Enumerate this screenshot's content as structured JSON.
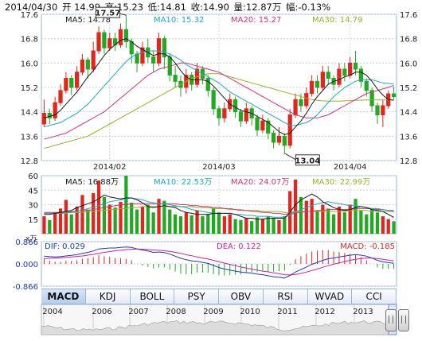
{
  "header": {
    "date": "2014/04/30",
    "open": "开 14.99",
    "high": "高:15.23",
    "low": "低:14.81",
    "close": "收:14.90",
    "volume": "量:12.87万",
    "change": "幅:-0.13%"
  },
  "price_panel": {
    "ma_labels": [
      {
        "text": "MA5: 14.78",
        "color": "#1a1a1a"
      },
      {
        "text": "MA10: 15.32",
        "color": "#1ca7c9"
      },
      {
        "text": "MA20: 15.27",
        "color": "#d4327a"
      },
      {
        "text": "MA30: 14.79",
        "color": "#9bb021"
      }
    ],
    "y_ticks": [
      "17.6",
      "16.8",
      "16.0",
      "15.2",
      "14.4",
      "13.6",
      "12.8"
    ],
    "x_ticks": [
      "2014/02",
      "2014/03",
      "2014/04"
    ],
    "annotations": {
      "max": "17.57",
      "min": "13.04"
    }
  },
  "volume_panel": {
    "unit": "x万",
    "ma_labels": [
      {
        "text": "MA5: 16.88万",
        "color": "#1a1a1a"
      },
      {
        "text": "MA10: 22.53万",
        "color": "#1ca7c9"
      },
      {
        "text": "MA20: 24.07万",
        "color": "#d4327a"
      },
      {
        "text": "MA30: 22.99万",
        "color": "#9bb021"
      }
    ],
    "y_ticks": [
      "60",
      "45",
      "30",
      "15"
    ]
  },
  "macd_panel": {
    "dif": "DIF: 0.029",
    "dea": "DEA: 0.122",
    "macd": "MACD: -0.185",
    "y_ticks": [
      "0.866",
      "0.000",
      "-0.866"
    ]
  },
  "tabs": [
    "MACD",
    "KDJ",
    "BOLL",
    "PSY",
    "OBV",
    "RSI",
    "WVAD",
    "CCI"
  ],
  "active_tab": "MACD",
  "timeline": [
    "2004",
    "2006",
    "2007",
    "2008",
    "2009",
    "2010",
    "2011",
    "2012",
    "2013"
  ],
  "colors": {
    "up": "#e0261d",
    "down": "#23a823",
    "grid": "#c9d4e6",
    "dif": "#1a3bb8",
    "dea": "#d41e9c"
  },
  "chart_data": {
    "type": "candlestick",
    "title": "",
    "ylim": [
      12.8,
      17.6
    ],
    "candles": [
      [
        14.0,
        14.35,
        14.8,
        13.9
      ],
      [
        14.35,
        14.2,
        14.5,
        14.0
      ],
      [
        14.2,
        14.7,
        14.9,
        14.1
      ],
      [
        14.7,
        15.1,
        15.3,
        14.6
      ],
      [
        15.1,
        15.5,
        15.7,
        15.0
      ],
      [
        15.5,
        15.2,
        15.6,
        14.95
      ],
      [
        15.2,
        15.7,
        15.9,
        15.1
      ],
      [
        15.7,
        16.1,
        16.3,
        15.6
      ],
      [
        16.1,
        15.8,
        16.2,
        15.5
      ],
      [
        15.8,
        16.4,
        16.7,
        15.7
      ],
      [
        16.4,
        17.0,
        17.2,
        16.3
      ],
      [
        17.0,
        16.5,
        17.1,
        16.3
      ],
      [
        16.5,
        16.8,
        17.0,
        16.4
      ],
      [
        16.8,
        16.6,
        17.0,
        16.4
      ],
      [
        16.6,
        17.1,
        17.3,
        16.5
      ],
      [
        17.1,
        16.7,
        17.57,
        16.5
      ],
      [
        16.7,
        16.3,
        16.8,
        16.0
      ],
      [
        16.3,
        16.0,
        16.4,
        15.7
      ],
      [
        16.0,
        16.5,
        16.7,
        15.9
      ],
      [
        16.5,
        16.2,
        16.8,
        16.0
      ],
      [
        16.2,
        16.0,
        16.4,
        15.7
      ],
      [
        16.0,
        16.8,
        17.0,
        15.9
      ],
      [
        16.8,
        16.2,
        16.9,
        15.8
      ],
      [
        16.2,
        15.6,
        16.3,
        15.4
      ],
      [
        15.6,
        15.4,
        15.9,
        15.2
      ],
      [
        15.4,
        15.2,
        15.6,
        14.9
      ],
      [
        15.2,
        15.6,
        15.8,
        15.0
      ],
      [
        15.6,
        15.3,
        15.7,
        15.1
      ],
      [
        15.3,
        15.8,
        16.0,
        15.2
      ],
      [
        15.8,
        15.5,
        15.9,
        15.3
      ],
      [
        15.5,
        15.1,
        15.6,
        14.9
      ],
      [
        15.1,
        14.5,
        15.2,
        14.3
      ],
      [
        14.5,
        14.2,
        14.6,
        13.95
      ],
      [
        14.2,
        14.5,
        14.7,
        14.05
      ],
      [
        14.5,
        14.8,
        15.0,
        14.4
      ],
      [
        14.8,
        14.4,
        14.9,
        14.2
      ],
      [
        14.4,
        14.1,
        14.5,
        13.9
      ],
      [
        14.1,
        14.5,
        14.7,
        14.0
      ],
      [
        14.5,
        14.2,
        14.6,
        13.95
      ],
      [
        14.2,
        13.8,
        14.3,
        13.6
      ],
      [
        13.8,
        14.1,
        14.3,
        13.7
      ],
      [
        14.1,
        13.7,
        14.2,
        13.5
      ],
      [
        13.7,
        13.4,
        13.8,
        13.2
      ],
      [
        13.4,
        13.6,
        13.9,
        13.3
      ],
      [
        13.6,
        13.3,
        13.7,
        13.04
      ],
      [
        13.3,
        14.3,
        14.5,
        13.2
      ],
      [
        14.3,
        14.8,
        15.0,
        14.2
      ],
      [
        14.8,
        14.6,
        15.0,
        14.4
      ],
      [
        14.6,
        15.0,
        15.2,
        14.5
      ],
      [
        15.0,
        15.4,
        15.6,
        14.9
      ],
      [
        15.4,
        15.2,
        15.6,
        15.0
      ],
      [
        15.2,
        15.7,
        15.9,
        15.1
      ],
      [
        15.7,
        15.5,
        15.9,
        15.3
      ],
      [
        15.5,
        15.3,
        15.6,
        15.1
      ],
      [
        15.3,
        15.8,
        16.0,
        15.2
      ],
      [
        15.8,
        15.6,
        16.0,
        15.4
      ],
      [
        15.6,
        16.0,
        16.2,
        15.5
      ],
      [
        16.0,
        15.8,
        16.4,
        15.6
      ],
      [
        15.8,
        15.4,
        15.9,
        15.2
      ],
      [
        15.4,
        15.1,
        15.5,
        14.9
      ],
      [
        15.1,
        14.6,
        15.2,
        14.4
      ],
      [
        14.6,
        14.3,
        14.7,
        14.0
      ],
      [
        14.3,
        14.6,
        14.8,
        13.9
      ],
      [
        14.6,
        14.99,
        15.1,
        14.5
      ],
      [
        14.99,
        14.9,
        15.23,
        14.81
      ]
    ],
    "ma5": [
      14.2,
      14.25,
      14.3,
      14.45,
      14.65,
      14.85,
      15.05,
      15.3,
      15.55,
      15.75,
      16.0,
      16.25,
      16.45,
      16.6,
      16.75,
      16.8,
      16.7,
      16.55,
      16.45,
      16.35,
      16.25,
      16.3,
      16.3,
      16.2,
      16.0,
      15.75,
      15.55,
      15.45,
      15.45,
      15.45,
      15.4,
      15.25,
      15.05,
      14.85,
      14.65,
      14.55,
      14.45,
      14.4,
      14.35,
      14.25,
      14.15,
      14.05,
      13.9,
      13.75,
      13.65,
      13.7,
      13.9,
      14.1,
      14.35,
      14.65,
      14.9,
      15.1,
      15.3,
      15.4,
      15.45,
      15.55,
      15.6,
      15.7,
      15.7,
      15.6,
      15.4,
      15.15,
      14.95,
      14.8,
      14.78
    ],
    "ma10": [
      13.9,
      13.95,
      14.0,
      14.05,
      14.15,
      14.25,
      14.35,
      14.5,
      14.65,
      14.85,
      15.05,
      15.25,
      15.45,
      15.65,
      15.85,
      16.05,
      16.2,
      16.3,
      16.35,
      16.4,
      16.4,
      16.4,
      16.35,
      16.3,
      16.2,
      16.1,
      15.95,
      15.85,
      15.75,
      15.65,
      15.55,
      15.45,
      15.35,
      15.2,
      15.05,
      14.95,
      14.85,
      14.75,
      14.65,
      14.55,
      14.45,
      14.35,
      14.25,
      14.15,
      14.05,
      13.95,
      13.95,
      14.0,
      14.05,
      14.15,
      14.3,
      14.5,
      14.7,
      14.9,
      15.05,
      15.2,
      15.3,
      15.4,
      15.45,
      15.45,
      15.45,
      15.4,
      15.35,
      15.33,
      15.32
    ],
    "ma20": [
      13.5,
      13.55,
      13.6,
      13.65,
      13.7,
      13.8,
      13.9,
      14.0,
      14.1,
      14.2,
      14.3,
      14.4,
      14.55,
      14.7,
      14.85,
      15.0,
      15.15,
      15.3,
      15.45,
      15.6,
      15.7,
      15.8,
      15.85,
      15.9,
      15.95,
      16.0,
      16.0,
      15.95,
      15.9,
      15.85,
      15.8,
      15.75,
      15.7,
      15.6,
      15.5,
      15.4,
      15.3,
      15.2,
      15.1,
      15.0,
      14.9,
      14.8,
      14.7,
      14.6,
      14.5,
      14.4,
      14.3,
      14.25,
      14.2,
      14.2,
      14.2,
      14.25,
      14.3,
      14.4,
      14.5,
      14.6,
      14.7,
      14.8,
      14.9,
      15.0,
      15.05,
      15.1,
      15.15,
      15.2,
      15.27
    ],
    "ma30": [
      13.2,
      13.25,
      13.3,
      13.35,
      13.4,
      13.45,
      13.5,
      13.55,
      13.6,
      13.7,
      13.8,
      13.9,
      14.0,
      14.1,
      14.2,
      14.3,
      14.4,
      14.5,
      14.6,
      14.7,
      14.8,
      14.9,
      15.0,
      15.1,
      15.2,
      15.3,
      15.4,
      15.5,
      15.55,
      15.6,
      15.65,
      15.65,
      15.65,
      15.6,
      15.55,
      15.5,
      15.45,
      15.4,
      15.35,
      15.3,
      15.25,
      15.2,
      15.15,
      15.1,
      15.05,
      15.0,
      14.95,
      14.9,
      14.85,
      14.8,
      14.78,
      14.76,
      14.75,
      14.75,
      14.75,
      14.76,
      14.77,
      14.78,
      14.78,
      14.79,
      14.79,
      14.79,
      14.79,
      14.79,
      14.79
    ],
    "volume": [
      18,
      14,
      22,
      26,
      35,
      20,
      28,
      40,
      25,
      42,
      55,
      38,
      30,
      27,
      33,
      60,
      32,
      25,
      28,
      30,
      22,
      36,
      34,
      25,
      20,
      18,
      22,
      19,
      24,
      18,
      20,
      26,
      22,
      18,
      20,
      15,
      14,
      16,
      13,
      17,
      15,
      18,
      16,
      14,
      18,
      44,
      56,
      38,
      34,
      36,
      24,
      30,
      26,
      20,
      28,
      22,
      30,
      36,
      24,
      20,
      25,
      22,
      18,
      15,
      12.87
    ],
    "vol_ma5": [
      20,
      20,
      21,
      22,
      23,
      24,
      27,
      29,
      31,
      33,
      36,
      40,
      38,
      37,
      36,
      37,
      37,
      35,
      32,
      28,
      27,
      28,
      29,
      28,
      27,
      24,
      22,
      21,
      20,
      20,
      20,
      21,
      21,
      21,
      21,
      20,
      18,
      16,
      16,
      15,
      15,
      16,
      16,
      16,
      16,
      22,
      30,
      35,
      38,
      41,
      38,
      33,
      30,
      27,
      25,
      24,
      25,
      27,
      28,
      27,
      25,
      24,
      23,
      20,
      16.88
    ],
    "vol_ma10": [
      21,
      21,
      21,
      21,
      22,
      22,
      23,
      24,
      26,
      27,
      29,
      31,
      33,
      34,
      35,
      36,
      37,
      36,
      35,
      33,
      32,
      31,
      31,
      30,
      29,
      28,
      27,
      25,
      24,
      23,
      22,
      21,
      21,
      21,
      21,
      20,
      20,
      19,
      19,
      18,
      18,
      18,
      17,
      17,
      17,
      19,
      22,
      25,
      27,
      29,
      31,
      32,
      33,
      32,
      31,
      30,
      29,
      29,
      28,
      27,
      26,
      26,
      25,
      24,
      22.53
    ],
    "vol_ma20": [
      22,
      22,
      22,
      22,
      22,
      23,
      23,
      24,
      24,
      25,
      26,
      27,
      28,
      29,
      30,
      30,
      31,
      31,
      31,
      31,
      31,
      31,
      31,
      31,
      31,
      30,
      30,
      29,
      29,
      28,
      28,
      27,
      27,
      26,
      26,
      25,
      24,
      24,
      23,
      23,
      22,
      22,
      21,
      21,
      20,
      21,
      22,
      22,
      23,
      23,
      24,
      24,
      25,
      25,
      25,
      25,
      25,
      26,
      26,
      26,
      26,
      25,
      25,
      24,
      24.07
    ],
    "vol_ma30": [
      21,
      21,
      21,
      21,
      21,
      22,
      22,
      22,
      23,
      23,
      24,
      24,
      25,
      25,
      26,
      26,
      27,
      27,
      28,
      28,
      28,
      28,
      28,
      28,
      28,
      28,
      28,
      28,
      27,
      27,
      27,
      26,
      26,
      26,
      25,
      25,
      25,
      24,
      24,
      24,
      23,
      23,
      23,
      23,
      22,
      22,
      23,
      23,
      23,
      23,
      23,
      23,
      23,
      23,
      23,
      23,
      24,
      24,
      24,
      24,
      23,
      23,
      23,
      23,
      22.99
    ],
    "dif": [
      0.3,
      0.28,
      0.27,
      0.28,
      0.31,
      0.33,
      0.36,
      0.41,
      0.45,
      0.5,
      0.58,
      0.6,
      0.62,
      0.62,
      0.64,
      0.66,
      0.64,
      0.58,
      0.54,
      0.5,
      0.45,
      0.46,
      0.44,
      0.38,
      0.3,
      0.22,
      0.16,
      0.12,
      0.1,
      0.06,
      0.02,
      -0.06,
      -0.14,
      -0.2,
      -0.24,
      -0.28,
      -0.32,
      -0.34,
      -0.36,
      -0.4,
      -0.42,
      -0.46,
      -0.5,
      -0.52,
      -0.55,
      -0.45,
      -0.32,
      -0.22,
      -0.12,
      -0.02,
      0.06,
      0.14,
      0.2,
      0.23,
      0.27,
      0.3,
      0.34,
      0.36,
      0.34,
      0.3,
      0.23,
      0.14,
      0.08,
      0.05,
      0.029
    ],
    "dea": [
      0.2,
      0.22,
      0.23,
      0.24,
      0.25,
      0.27,
      0.29,
      0.31,
      0.34,
      0.37,
      0.41,
      0.45,
      0.48,
      0.51,
      0.53,
      0.56,
      0.57,
      0.58,
      0.57,
      0.56,
      0.54,
      0.53,
      0.51,
      0.49,
      0.45,
      0.41,
      0.36,
      0.32,
      0.27,
      0.23,
      0.19,
      0.14,
      0.08,
      0.03,
      -0.02,
      -0.07,
      -0.12,
      -0.16,
      -0.2,
      -0.24,
      -0.28,
      -0.31,
      -0.35,
      -0.38,
      -0.42,
      -0.43,
      -0.41,
      -0.37,
      -0.32,
      -0.26,
      -0.2,
      -0.13,
      -0.07,
      -0.01,
      0.04,
      0.09,
      0.14,
      0.18,
      0.21,
      0.23,
      0.23,
      0.21,
      0.18,
      0.15,
      0.122
    ]
  }
}
